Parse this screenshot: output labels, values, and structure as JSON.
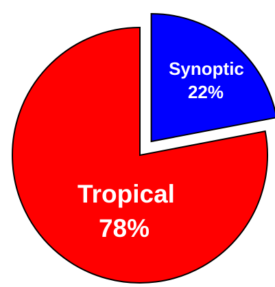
{
  "chart_data": {
    "type": "pie",
    "title": "",
    "exploded": "Synoptic",
    "slices": [
      {
        "label": "Synoptic",
        "value": 22,
        "value_label": "22%",
        "color": "#0000ff"
      },
      {
        "label": "Tropical",
        "value": 78,
        "value_label": "78%",
        "color": "#ff0000"
      }
    ]
  }
}
